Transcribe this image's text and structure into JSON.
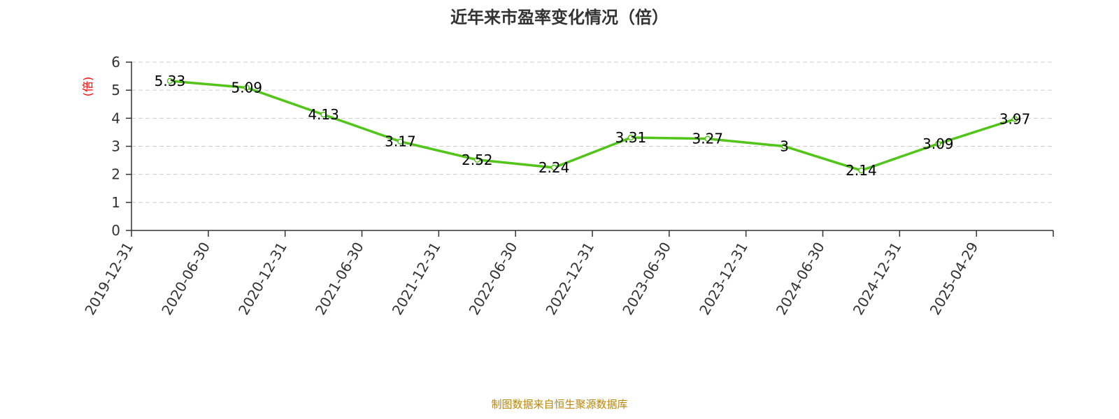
{
  "chart_data": {
    "type": "line",
    "title": "近年来市盈率变化情况（倍）",
    "ylabel": "(倍)",
    "xlabel": "",
    "ylim": [
      0,
      6
    ],
    "yticks": [
      0,
      1,
      2,
      3,
      4,
      5,
      6
    ],
    "grid": true,
    "categories": [
      "2019-12-31",
      "2020-06-30",
      "2020-12-31",
      "2021-06-30",
      "2021-12-31",
      "2022-06-30",
      "2022-12-31",
      "2023-06-30",
      "2023-12-31",
      "2024-06-30",
      "2024-12-31",
      "2025-04-29"
    ],
    "series": [
      {
        "values": [
          5.33,
          5.09,
          4.13,
          3.17,
          2.52,
          2.24,
          3.31,
          3.27,
          3,
          2.14,
          3.09,
          3.97
        ],
        "labels": [
          "5.33",
          "5.09",
          "4.13",
          "3.17",
          "2.52",
          "2.24",
          "3.31",
          "3.27",
          "3",
          "2.14",
          "3.09",
          "3.97"
        ]
      }
    ],
    "colors": {
      "line": "#52c41a",
      "grid": "#cccccc",
      "axis": "#333333",
      "unit": "#ff0000",
      "source": "#b8860b"
    }
  },
  "footer": {
    "source": "制图数据来自恒生聚源数据库"
  }
}
